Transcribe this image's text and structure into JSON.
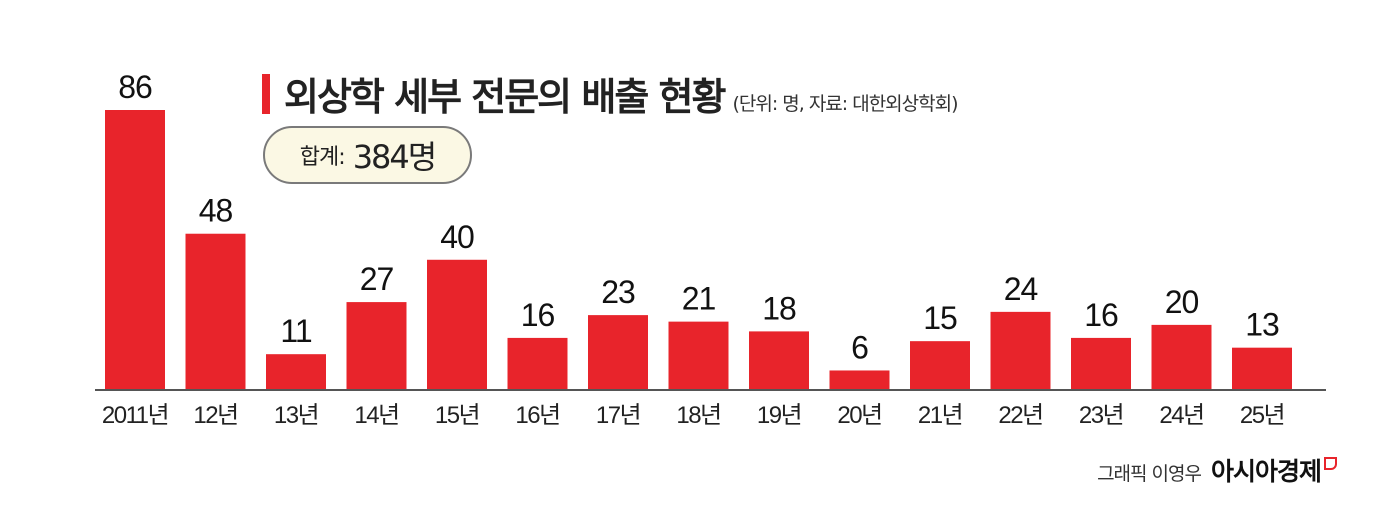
{
  "title": "외상학 세부 전문의 배출 현황",
  "subtitle": "(단위: 명, 자료: 대한외상학회)",
  "total": {
    "label": "합계:",
    "value": "384명"
  },
  "credit": {
    "text": "그래픽 이영우",
    "logo": "아시아경제"
  },
  "colors": {
    "bar": "#e8242b",
    "accent": "#e8242b",
    "total_box_bg": "#fbf8e4",
    "axis": "#555555"
  },
  "chart_data": {
    "type": "bar",
    "categories": [
      "2011년",
      "12년",
      "13년",
      "14년",
      "15년",
      "16년",
      "17년",
      "18년",
      "19년",
      "20년",
      "21년",
      "22년",
      "23년",
      "24년",
      "25년"
    ],
    "values": [
      86,
      48,
      11,
      27,
      40,
      16,
      23,
      21,
      18,
      6,
      15,
      24,
      16,
      20,
      13
    ],
    "title": "외상학 세부 전문의 배출 현황",
    "unit": "명",
    "ylim": [
      0,
      86
    ],
    "grid": false,
    "legend": false
  }
}
